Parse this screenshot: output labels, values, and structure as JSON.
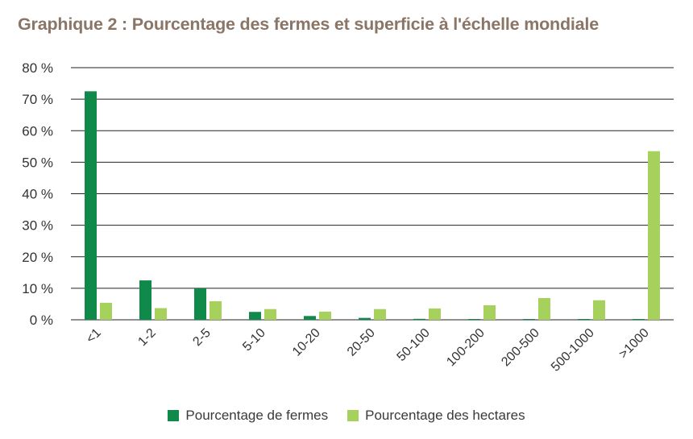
{
  "colors": {
    "fermes": "#0f8a4a",
    "hectares": "#a6d15c",
    "title": "#8a7566",
    "grid": "#222222"
  },
  "chart_data": {
    "type": "bar",
    "title": "Graphique 2 : Pourcentage des fermes et superficie à l'échelle mondiale",
    "xlabel": "",
    "ylabel": "",
    "ylim": [
      0,
      80
    ],
    "yticks": [
      "0 %",
      "10 %",
      "20 %",
      "30 %",
      "40 %",
      "50 %",
      "60 %",
      "70 %",
      "80 %"
    ],
    "categories": [
      "<1",
      "1-2",
      "2-5",
      "5-10",
      "10-20",
      "20-50",
      "50-100",
      "100-200",
      "200-500",
      "500-1000",
      ">1000"
    ],
    "series": [
      {
        "name": "Pourcentage de fermes",
        "values": [
          72.5,
          12.5,
          10,
          2.5,
          1.2,
          0.6,
          0.3,
          0.2,
          0.2,
          0.2,
          0.2
        ]
      },
      {
        "name": "Pourcentage des hectares",
        "values": [
          5.4,
          3.7,
          5.9,
          3.4,
          2.6,
          3.4,
          3.6,
          4.6,
          6.9,
          6.2,
          53.5
        ]
      }
    ],
    "grid": true,
    "legend": "bottom"
  }
}
